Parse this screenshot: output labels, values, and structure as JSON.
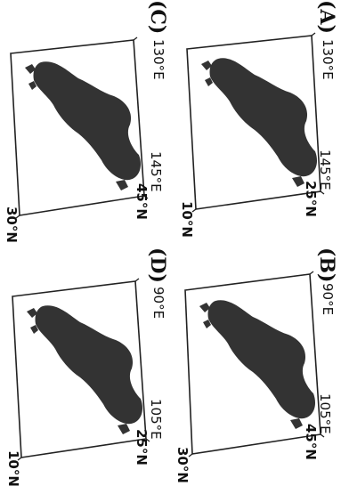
{
  "panels": [
    {
      "id": "A",
      "label": "(A)",
      "lon_left": "130°E",
      "lon_right": "145°E",
      "lat_top": "25°N",
      "lat_bottom": "10°N"
    },
    {
      "id": "B",
      "label": "(B)",
      "lon_left": "90°E",
      "lon_right": "105°E",
      "lat_top": "45°N",
      "lat_bottom": "30°N"
    },
    {
      "id": "C",
      "label": "(C)",
      "lon_left": "130°E",
      "lon_right": "145°E",
      "lat_top": "45°N",
      "lat_bottom": "30°N"
    },
    {
      "id": "D",
      "label": "(D)",
      "lon_left": "90°E",
      "lon_right": "105°E",
      "lat_top": "25°N",
      "lat_bottom": "10°N"
    }
  ],
  "land_color": "#333333",
  "frame_color": "#222222"
}
